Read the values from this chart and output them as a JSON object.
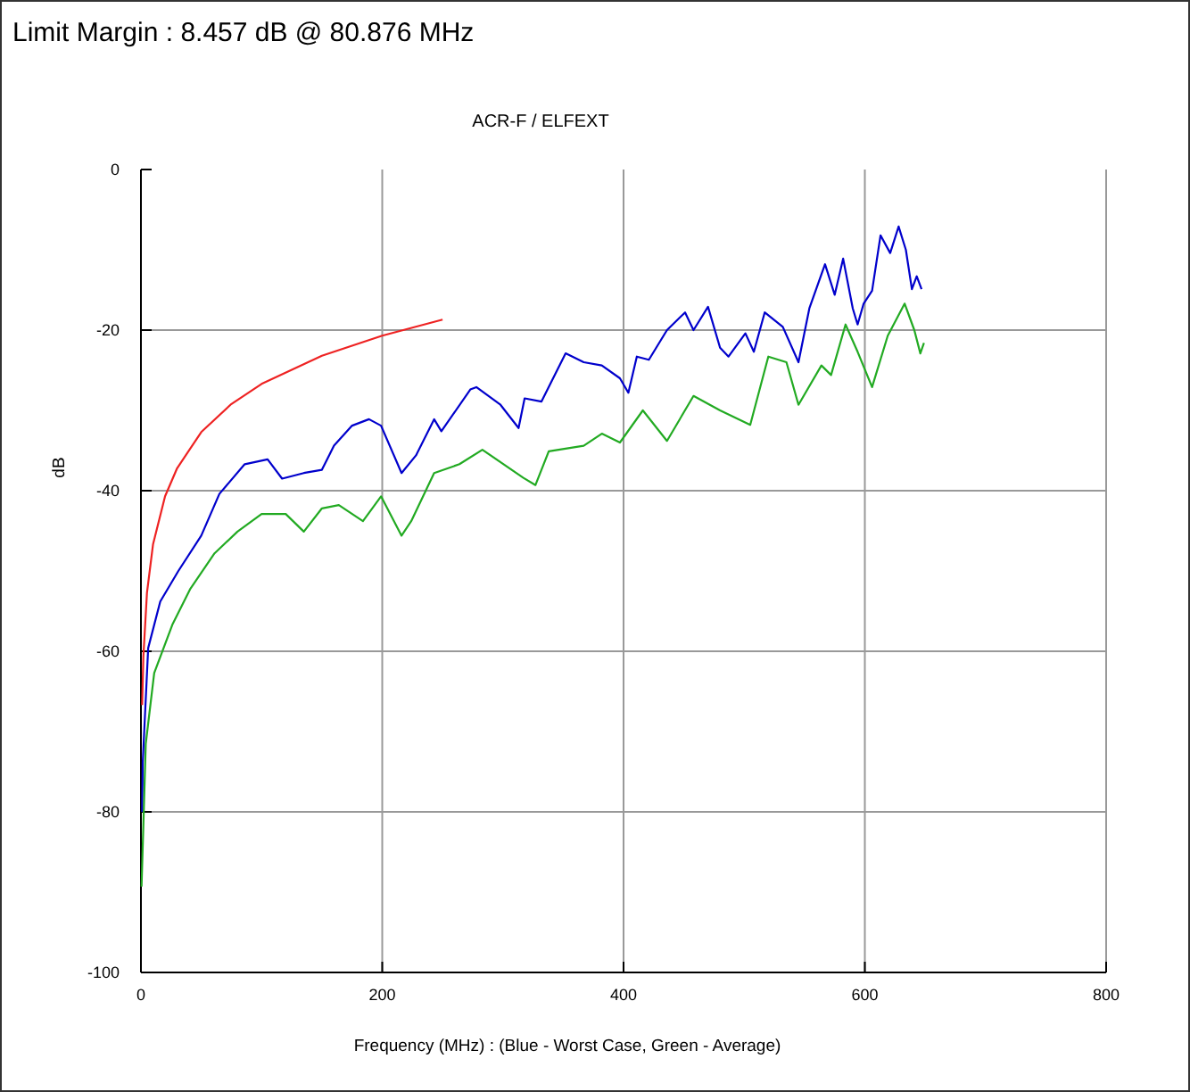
{
  "chart_data": {
    "type": "line",
    "title": "ACR-F / ELFEXT",
    "xlabel": "Frequency (MHz) : (Blue - Worst Case, Green - Average)",
    "ylabel": "dB",
    "annotations": [
      "Limit Margin : 8.457 dB @ 80.876 MHz"
    ],
    "xlim": [
      0,
      800
    ],
    "xticks": [
      0,
      200,
      400,
      600,
      800
    ],
    "ylim": [
      -100,
      0
    ],
    "yticks": [
      -100,
      -80,
      -60,
      -40,
      -20,
      0
    ],
    "grid": true,
    "marker": "none",
    "line_style": "solid",
    "series": [
      {
        "color": "#ee2222",
        "x": [
          1,
          2,
          5,
          10,
          20,
          30,
          50,
          75,
          100,
          150,
          200,
          250
        ],
        "values": [
          -66.7,
          -60.7,
          -52.7,
          -46.7,
          -40.7,
          -37.2,
          -32.7,
          -29.2,
          -26.7,
          -23.2,
          -20.7,
          -18.7
        ]
      },
      {
        "color": "#0000cc",
        "x": [
          1,
          1.5,
          6,
          16,
          31,
          50,
          65,
          86,
          105,
          117,
          135,
          150,
          160,
          175,
          189,
          199,
          216,
          228,
          243,
          249,
          273,
          278,
          298,
          313,
          318,
          332,
          352,
          367,
          382,
          397,
          404,
          411,
          421,
          436,
          451,
          458,
          470,
          480,
          487,
          501,
          508,
          517,
          532,
          545,
          554,
          567,
          575,
          582,
          590,
          594,
          599,
          606,
          613,
          621,
          628,
          634,
          639,
          643,
          647
        ],
        "values": [
          -80,
          -73.8,
          -59.6,
          -53.8,
          -50,
          -45.6,
          -40.4,
          -36.7,
          -36.1,
          -38.5,
          -37.8,
          -37.4,
          -34.4,
          -31.9,
          -31.1,
          -31.9,
          -37.8,
          -35.6,
          -31.1,
          -32.6,
          -27.4,
          -27.1,
          -29.3,
          -32.2,
          -28.5,
          -28.9,
          -22.9,
          -24,
          -24.4,
          -26,
          -27.8,
          -23.3,
          -23.7,
          -20,
          -17.8,
          -20,
          -17.1,
          -22.2,
          -23.3,
          -20.4,
          -22.7,
          -17.8,
          -19.6,
          -24,
          -17.3,
          -11.8,
          -15.6,
          -11.1,
          -17.3,
          -19.3,
          -16.7,
          -15.1,
          -8.2,
          -10.4,
          -7.1,
          -10,
          -14.9,
          -13.3,
          -14.9
        ]
      },
      {
        "color": "#22aa22",
        "x": [
          0.5,
          4,
          11,
          26,
          41,
          61,
          80,
          100,
          120,
          135,
          150,
          164,
          184,
          199,
          216,
          224,
          243,
          264,
          283,
          317,
          327,
          338,
          367,
          382,
          397,
          416,
          436,
          458,
          480,
          505,
          520,
          535,
          545,
          564,
          572,
          584,
          594,
          606,
          619,
          633,
          641,
          646,
          649
        ],
        "values": [
          -89.3,
          -71.5,
          -62.7,
          -56.7,
          -52.2,
          -47.8,
          -45.1,
          -42.9,
          -42.9,
          -45.1,
          -42.2,
          -41.8,
          -43.8,
          -40.7,
          -45.6,
          -43.8,
          -37.8,
          -36.7,
          -34.9,
          -38.4,
          -39.3,
          -35.1,
          -34.4,
          -32.9,
          -34,
          -30,
          -33.8,
          -28.2,
          -30,
          -31.8,
          -23.3,
          -24,
          -29.3,
          -24.4,
          -25.6,
          -19.3,
          -22.7,
          -27.1,
          -20.7,
          -16.7,
          -20,
          -22.9,
          -21.6
        ]
      }
    ]
  }
}
